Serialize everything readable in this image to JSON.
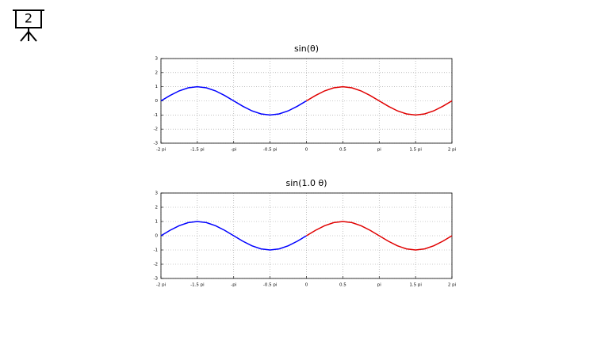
{
  "slide_number": "2",
  "chart_data": [
    {
      "type": "line",
      "title": "sin(θ)",
      "xlim": [
        -2,
        2
      ],
      "ylim": [
        -3,
        3
      ],
      "xticks": [
        {
          "value": -2,
          "label": "-2 pi"
        },
        {
          "value": -1.5,
          "label": "-1.5 pi"
        },
        {
          "value": -1,
          "label": "-pi"
        },
        {
          "value": -0.5,
          "label": "-0.5 pi"
        },
        0,
        0.5,
        {
          "value": 1,
          "label": "pi"
        },
        {
          "value": 1.5,
          "label": "1.5 pi"
        },
        {
          "value": 2,
          "label": "2 pi"
        }
      ],
      "yticks": [
        -3,
        -2,
        -1,
        0,
        1,
        2,
        3
      ],
      "grid": true,
      "series": [
        {
          "color": "#0000ff",
          "x": [
            -2,
            -1.875,
            -1.75,
            -1.625,
            -1.5,
            -1.375,
            -1.25,
            -1.125,
            -1,
            -0.875,
            -0.75,
            -0.625,
            -0.5,
            -0.375,
            -0.25,
            -0.125,
            0
          ],
          "values": [
            0,
            0.383,
            0.707,
            0.924,
            1,
            0.924,
            0.707,
            0.383,
            0,
            -0.383,
            -0.707,
            -0.924,
            -1,
            -0.924,
            -0.707,
            -0.383,
            0
          ]
        },
        {
          "color": "#e00000",
          "x": [
            0,
            0.125,
            0.25,
            0.375,
            0.5,
            0.625,
            0.75,
            0.875,
            1,
            1.125,
            1.25,
            1.375,
            1.5,
            1.625,
            1.75,
            1.875,
            2
          ],
          "values": [
            0,
            0.383,
            0.707,
            0.924,
            1,
            0.924,
            0.707,
            0.383,
            0,
            -0.383,
            -0.707,
            -0.924,
            -1,
            -0.924,
            -0.707,
            -0.383,
            0
          ]
        }
      ]
    },
    {
      "type": "line",
      "title": "sin(1.0  θ)",
      "xlim": [
        -2,
        2
      ],
      "ylim": [
        -3,
        3
      ],
      "xticks": [
        {
          "value": -2,
          "label": "-2 pi"
        },
        {
          "value": -1.5,
          "label": "-1.5 pi"
        },
        {
          "value": -1,
          "label": "-pi"
        },
        {
          "value": -0.5,
          "label": "-0.5 pi"
        },
        0,
        0.5,
        {
          "value": 1,
          "label": "pi"
        },
        {
          "value": 1.5,
          "label": "1.5 pi"
        },
        {
          "value": 2,
          "label": "2 pi"
        }
      ],
      "yticks": [
        -3,
        -2,
        -1,
        0,
        1,
        2,
        3
      ],
      "grid": true,
      "series": [
        {
          "color": "#0000ff",
          "x": [
            -2,
            -1.875,
            -1.75,
            -1.625,
            -1.5,
            -1.375,
            -1.25,
            -1.125,
            -1,
            -0.875,
            -0.75,
            -0.625,
            -0.5,
            -0.375,
            -0.25,
            -0.125,
            0
          ],
          "values": [
            0,
            0.383,
            0.707,
            0.924,
            1,
            0.924,
            0.707,
            0.383,
            0,
            -0.383,
            -0.707,
            -0.924,
            -1,
            -0.924,
            -0.707,
            -0.383,
            0
          ]
        },
        {
          "color": "#e00000",
          "x": [
            0,
            0.125,
            0.25,
            0.375,
            0.5,
            0.625,
            0.75,
            0.875,
            1,
            1.125,
            1.25,
            1.375,
            1.5,
            1.625,
            1.75,
            1.875,
            2
          ],
          "values": [
            0,
            0.383,
            0.707,
            0.924,
            1,
            0.924,
            0.707,
            0.383,
            0,
            -0.383,
            -0.707,
            -0.924,
            -1,
            -0.924,
            -0.707,
            -0.383,
            0
          ]
        }
      ]
    }
  ]
}
